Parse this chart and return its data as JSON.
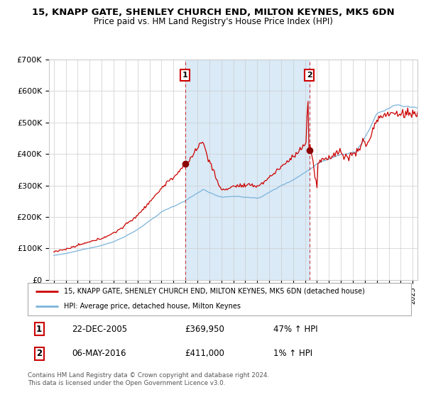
{
  "title": "15, KNAPP GATE, SHENLEY CHURCH END, MILTON KEYNES, MK5 6DN",
  "subtitle": "Price paid vs. HM Land Registry's House Price Index (HPI)",
  "background_color": "#ffffff",
  "shaded_region_color": "#daeaf7",
  "grid_color": "#cccccc",
  "red_line_color": "#cc0000",
  "blue_line_color": "#7ab3d9",
  "sale1_date_x": 2005.97,
  "sale1_price": 369950,
  "sale2_date_x": 2016.37,
  "sale2_price": 411000,
  "annotation1_label": "1",
  "annotation2_label": "2",
  "legend_red_label": "15, KNAPP GATE, SHENLEY CHURCH END, MILTON KEYNES, MK5 6DN (detached house)",
  "legend_blue_label": "HPI: Average price, detached house, Milton Keynes",
  "table_row1": [
    "1",
    "22-DEC-2005",
    "£369,950",
    "47% ↑ HPI"
  ],
  "table_row2": [
    "2",
    "06-MAY-2016",
    "£411,000",
    "1% ↑ HPI"
  ],
  "footer_text": "Contains HM Land Registry data © Crown copyright and database right 2024.\nThis data is licensed under the Open Government Licence v3.0.",
  "ylim": [
    0,
    700000
  ],
  "xlim_start": 1994.6,
  "xlim_end": 2025.4,
  "yticks": [
    0,
    100000,
    200000,
    300000,
    400000,
    500000,
    600000,
    700000
  ],
  "ytick_labels": [
    "£0",
    "£100K",
    "£200K",
    "£300K",
    "£400K",
    "£500K",
    "£600K",
    "£700K"
  ]
}
